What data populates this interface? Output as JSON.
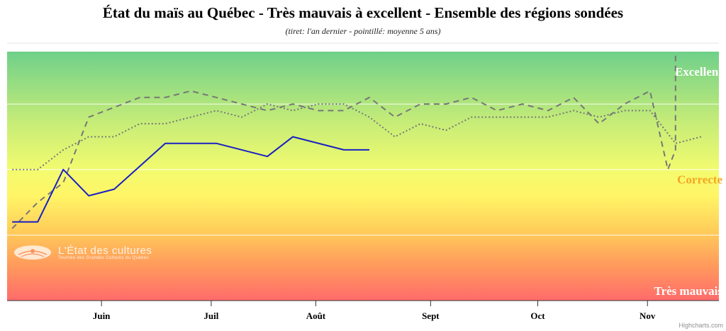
{
  "chart_data": {
    "type": "line",
    "title": "État du maïs au Québec - Très mauvais à excellent - Ensemble des régions sondées",
    "subtitle": "(tiret: l'an dernier - pointillé: moyenne 5 ans)",
    "x_ticks": [
      {
        "label": "Juin",
        "t": 9.0
      },
      {
        "label": "Juil",
        "t": 13.3
      },
      {
        "label": "Août",
        "t": 17.4
      },
      {
        "label": "Sept",
        "t": 21.9
      },
      {
        "label": "Oct",
        "t": 26.1
      },
      {
        "label": "Nov",
        "t": 30.4
      }
    ],
    "x_range": [
      5.3,
      33.2
    ],
    "y_range": [
      1,
      4.8
    ],
    "bands": [
      {
        "label": "Excellent",
        "y": 4.5,
        "color": "#ffffff"
      },
      {
        "label": "Correcte",
        "y": 2.85,
        "color": "#f5a623"
      },
      {
        "label": "Très mauvais",
        "y": 1.15,
        "color": "#ffffff"
      }
    ],
    "gridlines": [
      2,
      3,
      4
    ],
    "series": [
      {
        "style": "solid",
        "color": "#1a1fc4",
        "x": [
          5.5,
          6.5,
          7.5,
          8.5,
          9.5,
          11.5,
          13.5,
          15.5,
          16.5,
          18.5,
          19.5
        ],
        "y": [
          2.2,
          2.2,
          3.0,
          2.6,
          2.7,
          3.4,
          3.4,
          3.2,
          3.5,
          3.3,
          3.3
        ]
      },
      {
        "style": "dashed",
        "color": "#777777",
        "x": [
          5.5,
          6.5,
          7.5,
          8.5,
          10.5,
          11.5,
          12.5,
          13.5,
          14.5,
          15.5,
          16.5,
          17.5,
          18.5,
          19.5,
          20.5,
          21.5,
          22.5,
          23.5,
          24.5,
          25.5,
          26.5,
          27.5,
          28.5,
          29.5,
          30.5,
          31.2,
          31.5,
          31.5
        ],
        "y": [
          2.1,
          2.5,
          2.8,
          3.8,
          4.1,
          4.1,
          4.2,
          4.1,
          4.0,
          3.9,
          4.0,
          3.9,
          3.9,
          4.1,
          3.8,
          4.0,
          4.0,
          4.1,
          3.9,
          4.0,
          3.9,
          4.1,
          3.7,
          4.0,
          4.2,
          3.0,
          3.3,
          4.8
        ]
      },
      {
        "style": "dotted",
        "color": "#777777",
        "x": [
          5.5,
          6.5,
          7.5,
          8.5,
          9.5,
          10.5,
          11.5,
          13.5,
          14.5,
          15.5,
          16.5,
          17.5,
          18.5,
          19.5,
          20.5,
          21.5,
          22.5,
          23.5,
          24.5,
          26.5,
          27.5,
          28.5,
          29.5,
          30.5,
          31.5,
          32.5
        ],
        "y": [
          3.0,
          3.0,
          3.3,
          3.5,
          3.5,
          3.7,
          3.7,
          3.9,
          3.8,
          4.0,
          3.9,
          4.0,
          4.0,
          3.8,
          3.5,
          3.7,
          3.6,
          3.8,
          3.8,
          3.8,
          3.9,
          3.8,
          3.9,
          3.9,
          3.4,
          3.5
        ]
      }
    ]
  },
  "watermark": {
    "title": "L'État des cultures",
    "tagline": "Tournée des Grandes Cultures du Québec"
  },
  "credits": "Highcharts.com"
}
